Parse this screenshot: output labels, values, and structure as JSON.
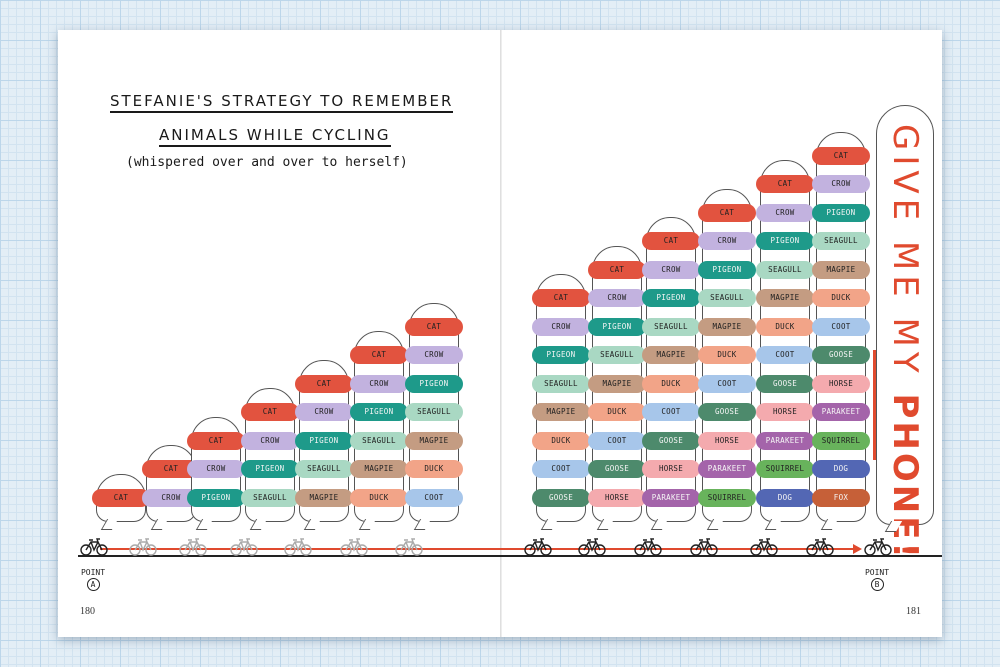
{
  "title": {
    "line1": "STEFANIE'S STRATEGY TO REMEMBER",
    "line2": "ANIMALS WHILE CYCLING",
    "subtitle": "(whispered over and over to herself)"
  },
  "pages": {
    "left": "180",
    "right": "181"
  },
  "points": {
    "label": "POINT",
    "start": "A",
    "end": "B"
  },
  "phone_message": {
    "part1": "GIVE ME MY ",
    "part2": "PHONE!"
  },
  "animals": [
    {
      "name": "CAT",
      "color": "#e2533f"
    },
    {
      "name": "CROW",
      "color": "#c2b2df"
    },
    {
      "name": "PIGEON",
      "color": "#1e9a8a"
    },
    {
      "name": "SEAGULL",
      "color": "#a9d8c3"
    },
    {
      "name": "MAGPIE",
      "color": "#c49c82"
    },
    {
      "name": "DUCK",
      "color": "#f2a488"
    },
    {
      "name": "COOT",
      "color": "#a7c6ea"
    },
    {
      "name": "GOOSE",
      "color": "#4d8a6c"
    },
    {
      "name": "HORSE",
      "color": "#f4aaae"
    },
    {
      "name": "PARAKEET",
      "color": "#a464aa"
    },
    {
      "name": "SQUIRREL",
      "color": "#68b35c"
    },
    {
      "name": "DOG",
      "color": "#5367b4"
    },
    {
      "name": "FOX",
      "color": "#c66038"
    }
  ],
  "bubbles": [
    {
      "count": 1
    },
    {
      "count": 2
    },
    {
      "count": 3
    },
    {
      "count": 4
    },
    {
      "count": 5
    },
    {
      "count": 6
    },
    {
      "count": 7
    },
    {
      "count": 8
    },
    {
      "count": 9
    },
    {
      "count": 10
    },
    {
      "count": 11
    },
    {
      "count": 12
    },
    {
      "count": 13
    }
  ],
  "colors": {
    "path": "#e04a2e",
    "ink": "#1a1a1a"
  }
}
